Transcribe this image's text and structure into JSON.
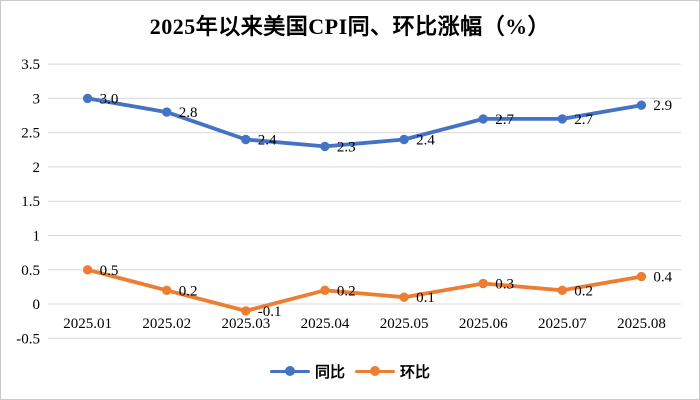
{
  "title": "2025年以来美国CPI同、环比涨幅（%）",
  "chart_data": {
    "type": "line",
    "title": "2025年以来美国CPI同、环比涨幅（%）",
    "categories": [
      "2025.01",
      "2025.02",
      "2025.03",
      "2025.04",
      "2025.05",
      "2025.06",
      "2025.07",
      "2025.08"
    ],
    "series": [
      {
        "key": "yoy",
        "name": "同比",
        "color": "#4472C4",
        "values": [
          3.0,
          2.8,
          2.4,
          2.3,
          2.4,
          2.7,
          2.7,
          2.9
        ],
        "labels": [
          "3.0",
          "2.8",
          "2.4",
          "2.3",
          "2.4",
          "2.7",
          "2.7",
          "2.9"
        ]
      },
      {
        "key": "mom",
        "name": "环比",
        "color": "#ED7D31",
        "values": [
          0.5,
          0.2,
          -0.1,
          0.2,
          0.1,
          0.3,
          0.2,
          0.4
        ],
        "labels": [
          "0.5",
          "0.2",
          "-0.1",
          "0.2",
          "0.1",
          "0.3",
          "0.2",
          "0.4"
        ]
      }
    ],
    "xlabel": "",
    "ylabel": "",
    "ylim": [
      -0.5,
      3.5
    ],
    "yticks": [
      {
        "value": 3.5,
        "label": "3.5"
      },
      {
        "value": 3,
        "label": "3"
      },
      {
        "value": 2.5,
        "label": "2.5"
      },
      {
        "value": 2,
        "label": "2"
      },
      {
        "value": 1.5,
        "label": "1.5"
      },
      {
        "value": 1,
        "label": "1"
      },
      {
        "value": 0.5,
        "label": "0.5"
      },
      {
        "value": 0,
        "label": "0"
      },
      {
        "value": -0.5,
        "label": "-0.5"
      }
    ],
    "grid": true,
    "legend_position": "bottom",
    "colors": {
      "gridline": "#D9D9D9",
      "text": "#000000",
      "background": "#FFFFFF",
      "frame_border": "#C9C9C9"
    }
  },
  "legend": {
    "items": [
      {
        "key": "yoy",
        "label": "同比",
        "color": "#4472C4"
      },
      {
        "key": "mom",
        "label": "环比",
        "color": "#ED7D31"
      }
    ]
  }
}
